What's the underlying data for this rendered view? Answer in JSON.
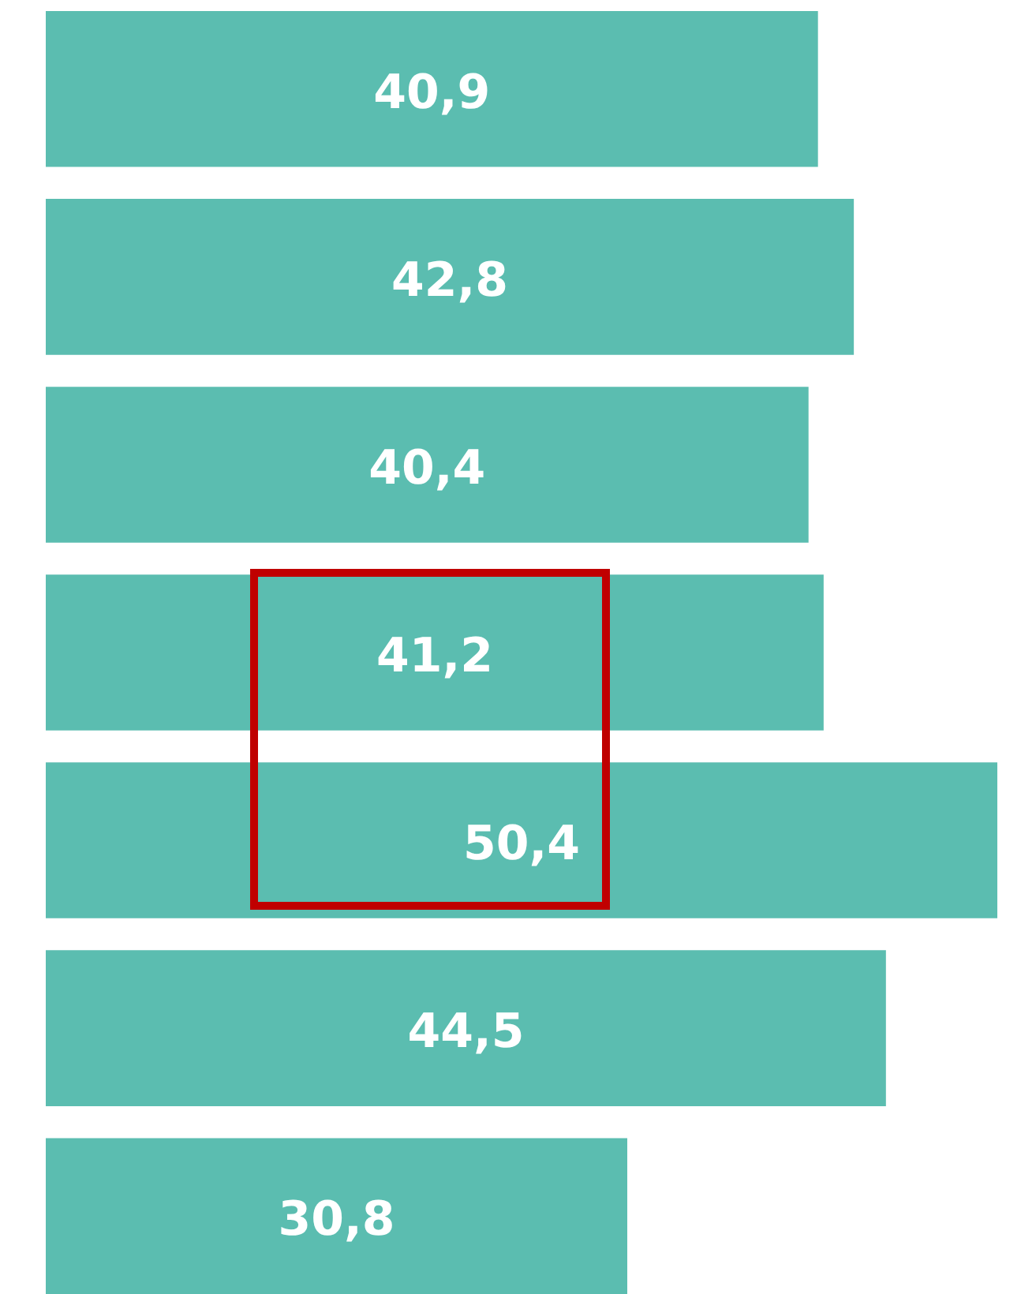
{
  "chart_data": {
    "type": "bar",
    "orientation": "horizontal",
    "categories": [
      null,
      null,
      null,
      null,
      null,
      null,
      null
    ],
    "values": [
      40.9,
      42.8,
      40.4,
      41.2,
      50.4,
      44.5,
      30.8
    ],
    "color": "#5bbdb0",
    "value_labels": [
      "40,9",
      "42,8",
      "40,4",
      "41,2",
      "50,4",
      "44,5",
      "30,8"
    ]
  }
}
